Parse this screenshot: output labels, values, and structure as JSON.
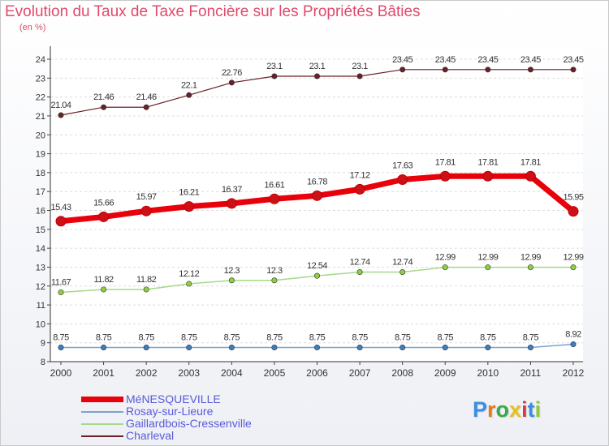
{
  "chart_data": {
    "type": "line",
    "title": "Evolution du Taux de Taxe Foncière sur les Propriétés Bâties",
    "ylabel": "(en %)",
    "xlabel": "",
    "categories": [
      "2000",
      "2001",
      "2002",
      "2003",
      "2004",
      "2005",
      "2006",
      "2007",
      "2008",
      "2009",
      "2010",
      "2011",
      "2012"
    ],
    "ylim": [
      8,
      24
    ],
    "yticks": [
      "8",
      "9",
      "10",
      "11",
      "12",
      "13",
      "14",
      "15",
      "16",
      "17",
      "18",
      "19",
      "20",
      "21",
      "22",
      "23",
      "24"
    ],
    "grid": "horizontal",
    "series": [
      {
        "name": "Charleval",
        "color": "#6b1f27",
        "marker": "#6b1f27",
        "width": 1.2,
        "values": [
          21.04,
          21.46,
          21.46,
          22.1,
          22.76,
          23.1,
          23.1,
          23.1,
          23.45,
          23.45,
          23.45,
          23.45,
          23.45
        ],
        "labels": [
          "21.04",
          "21.46",
          "21.46",
          "22.1",
          "22.76",
          "23.1",
          "23.1",
          "23.1",
          "23.45",
          "23.45",
          "23.45",
          "23.45",
          "23.45"
        ]
      },
      {
        "name": "MéNESQUEVILLE",
        "color": "#e8000b",
        "marker": "#cc1015",
        "width": 7,
        "values": [
          15.43,
          15.66,
          15.97,
          16.21,
          16.37,
          16.61,
          16.78,
          17.12,
          17.63,
          17.81,
          17.81,
          17.81,
          15.95
        ],
        "labels": [
          "15.43",
          "15.66",
          "15.97",
          "16.21",
          "16.37",
          "16.61",
          "16.78",
          "17.12",
          "17.63",
          "17.81",
          "17.81",
          "17.81",
          "15.95"
        ]
      },
      {
        "name": "Gaillardbois-Cressenville",
        "color": "#a6d98a",
        "marker": "#8ed040",
        "width": 1.5,
        "values": [
          11.67,
          11.82,
          11.82,
          12.12,
          12.3,
          12.3,
          12.54,
          12.74,
          12.74,
          12.99,
          12.99,
          12.99,
          12.99
        ],
        "labels": [
          "11.67",
          "11.82",
          "11.82",
          "12.12",
          "12.3",
          "12.3",
          "12.54",
          "12.74",
          "12.74",
          "12.99",
          "12.99",
          "12.99",
          "12.99"
        ]
      },
      {
        "name": "Rosay-sur-Lieure",
        "color": "#7ba3cf",
        "marker": "#3a7fc0",
        "width": 1.5,
        "values": [
          8.75,
          8.75,
          8.75,
          8.75,
          8.75,
          8.75,
          8.75,
          8.75,
          8.75,
          8.75,
          8.75,
          8.75,
          8.92
        ],
        "labels": [
          "8.75",
          "8.75",
          "8.75",
          "8.75",
          "8.75",
          "8.75",
          "8.75",
          "8.75",
          "8.75",
          "8.75",
          "8.75",
          "8.75",
          "8.92"
        ]
      }
    ],
    "legend": {
      "position": "bottom-left",
      "items": [
        {
          "name": "MéNESQUEVILLE",
          "color": "#e8000b"
        },
        {
          "name": "Rosay-sur-Lieure",
          "color": "#7ba3cf"
        },
        {
          "name": "Gaillardbois-Cressenville",
          "color": "#a6d98a"
        },
        {
          "name": "Charleval",
          "color": "#6b1f27"
        }
      ]
    }
  },
  "logo": {
    "text": "Proxiti",
    "letters": [
      "P",
      "r",
      "o",
      "x",
      "i",
      "t",
      "i"
    ],
    "colors": [
      "#3a8fe0",
      "#e87a1a",
      "#3aa84a",
      "#e8c020",
      "#d83a3a",
      "#3a8fe0",
      "#8ec83a"
    ]
  }
}
